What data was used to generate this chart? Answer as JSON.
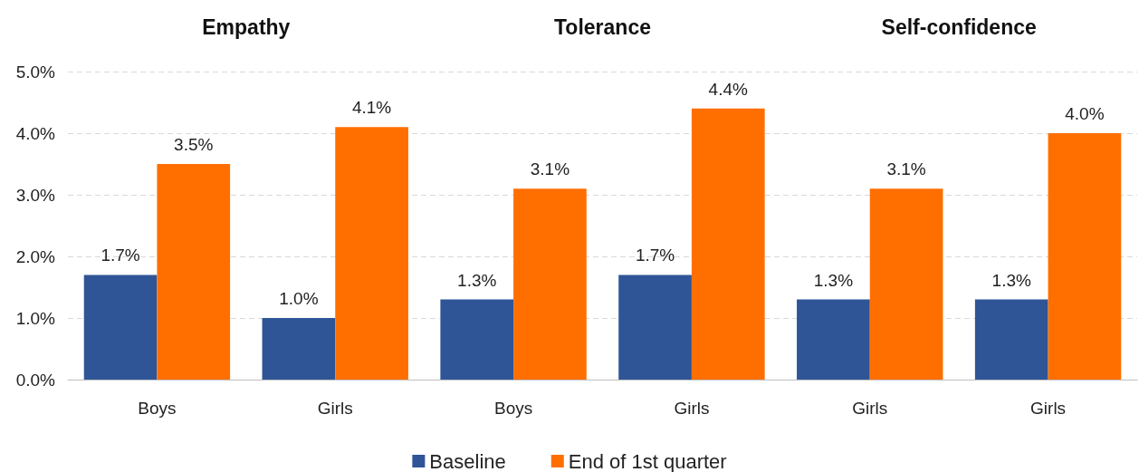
{
  "chart_data": {
    "type": "bar",
    "categories": [
      "Boys",
      "Girls",
      "Boys",
      "Girls",
      "Girls",
      "Girls"
    ],
    "series": [
      {
        "name": "Baseline",
        "color": "#2f5597",
        "values": [
          1.7,
          1.0,
          1.3,
          1.7,
          1.3,
          1.3
        ],
        "value_labels": [
          "1.7%",
          "1.0%",
          "1.3%",
          "1.7%",
          "1.3%",
          "1.3%"
        ]
      },
      {
        "name": "End of 1st quarter",
        "color": "#ff6f00",
        "values": [
          3.5,
          4.1,
          3.1,
          4.4,
          3.1,
          4.0
        ],
        "value_labels": [
          "3.5%",
          "4.1%",
          "3.1%",
          "4.4%",
          "3.1%",
          "4.0%"
        ]
      }
    ],
    "annotations": [
      "Empathy",
      "Tolerance",
      "Self-confidence"
    ],
    "ylim": [
      0,
      5
    ],
    "yticks": [
      {
        "value": 0,
        "label": "0.0%"
      },
      {
        "value": 1,
        "label": "1.0%"
      },
      {
        "value": 2,
        "label": "2.0%"
      },
      {
        "value": 3,
        "label": "3.0%"
      },
      {
        "value": 4,
        "label": "4.0%"
      },
      {
        "value": 5,
        "label": "5.0%"
      }
    ],
    "grid": "y",
    "legend": "bottom"
  }
}
